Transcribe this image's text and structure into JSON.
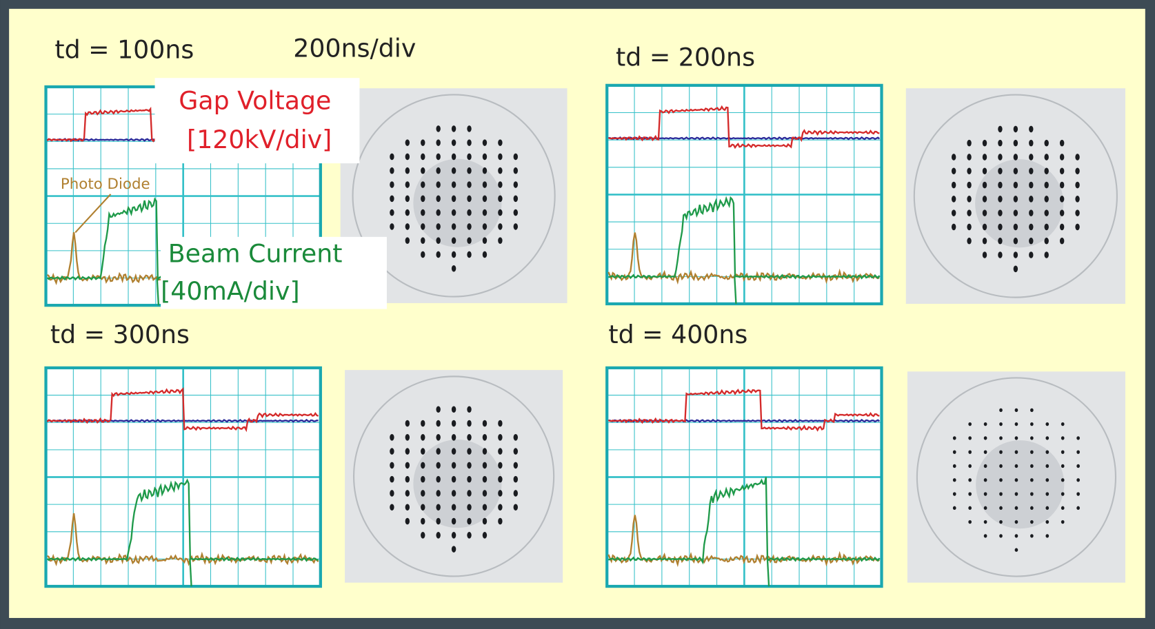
{
  "header": {
    "timebase": "200ns/div"
  },
  "panels": [
    {
      "label": "td = 100ns"
    },
    {
      "label": "td = 200ns"
    },
    {
      "label": "td = 300ns"
    },
    {
      "label": "td = 400ns"
    }
  ],
  "annotations": {
    "gap_voltage": "Gap Voltage",
    "gap_voltage_scale": "[120kV/div]",
    "photo_diode": "Photo Diode",
    "beam_current": "Beam Current",
    "beam_current_scale": "[40mA/div]"
  }
}
